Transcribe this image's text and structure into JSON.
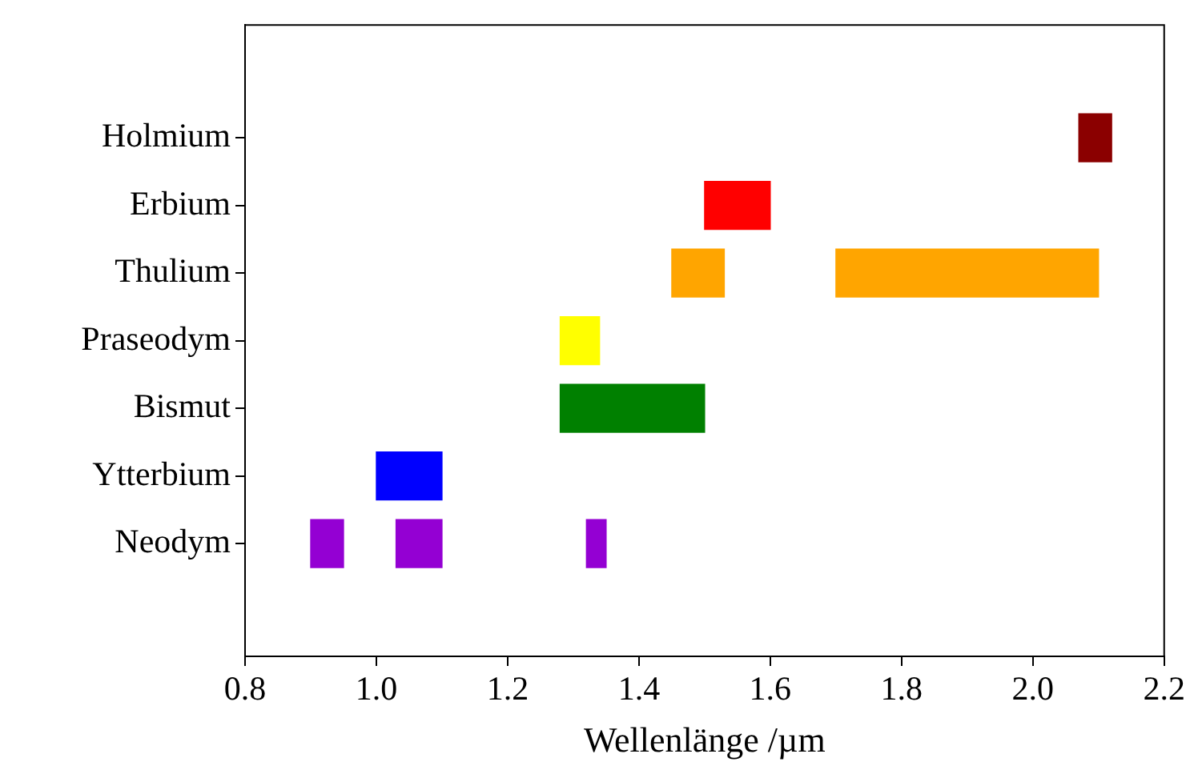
{
  "chart_data": {
    "type": "bar",
    "orientation": "horizontal",
    "xlabel": "Wellenlänge /µm",
    "categories": [
      "Holmium",
      "Erbium",
      "Thulium",
      "Praseodym",
      "Bismut",
      "Ytterbium",
      "Neodym"
    ],
    "series": [
      {
        "values": [
          0.05,
          0.1,
          0.08,
          0.06,
          0.22,
          0.1,
          0.05
        ],
        "base": [
          2.07,
          1.5,
          1.45,
          1.28,
          1.28,
          1.0,
          0.9
        ],
        "colors": [
          "#8b0000",
          "#ff0000",
          "#ffa500",
          "#ffff00",
          "#008000",
          "#0000ff",
          "#9400d3"
        ]
      },
      {
        "values": [
          null,
          null,
          0.4,
          null,
          null,
          null,
          0.07
        ],
        "base": [
          null,
          null,
          1.7,
          null,
          null,
          null,
          1.03
        ],
        "colors": [
          null,
          null,
          "#ffa500",
          null,
          null,
          null,
          "#9400d3"
        ]
      },
      {
        "values": [
          null,
          null,
          null,
          null,
          null,
          null,
          0.03
        ],
        "base": [
          null,
          null,
          null,
          null,
          null,
          null,
          1.32
        ],
        "colors": [
          null,
          null,
          null,
          null,
          null,
          null,
          "#9400d3"
        ]
      }
    ],
    "xlim": [
      0.8,
      2.2
    ],
    "xticks": [
      0.8,
      {
        "value": 1,
        "label": "1.0"
      },
      1.2,
      1.4,
      1.6,
      1.8,
      {
        "value": 2,
        "label": "2.0"
      },
      2.2
    ],
    "grid": false,
    "legend": false
  }
}
